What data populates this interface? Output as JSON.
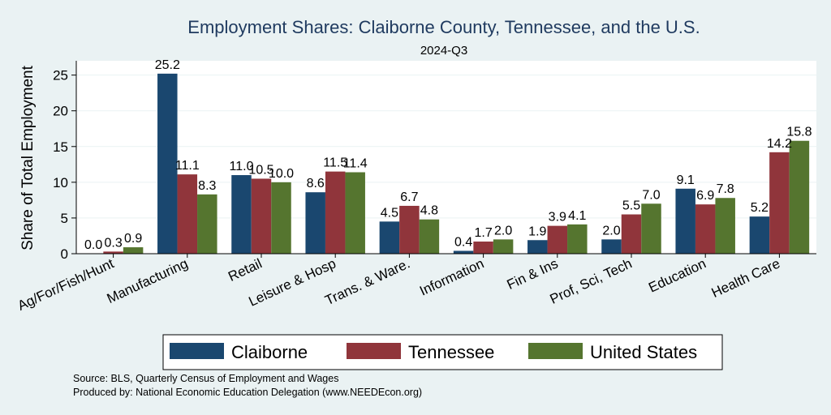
{
  "chart_data": {
    "type": "bar",
    "title": "Employment Shares: Claiborne County, Tennessee, and the U.S.",
    "subtitle": "2024-Q3",
    "ylabel": "Share of Total Employment",
    "xlabel": "",
    "ylim": [
      0,
      27
    ],
    "yticks": [
      0,
      5,
      10,
      15,
      20,
      25
    ],
    "grid": true,
    "legend_position": "bottom",
    "categories": [
      "Ag/For/Fish/Hunt",
      "Manufacturing",
      "Retail",
      "Leisure & Hosp",
      "Trans. & Ware.",
      "Information",
      "Fin & Ins",
      "Prof, Sci, Tech",
      "Education",
      "Health Care"
    ],
    "series": [
      {
        "name": "Claiborne",
        "color": "#1a476f",
        "values": [
          0.0,
          25.2,
          11.0,
          8.6,
          4.5,
          0.4,
          1.9,
          2.0,
          9.1,
          5.2
        ],
        "labels": [
          "0.0",
          "25.2",
          "11.0",
          "8.6",
          "4.5",
          "0.4",
          "1.9",
          "2.0",
          "9.1",
          "5.2"
        ]
      },
      {
        "name": "Tennessee",
        "color": "#90353b",
        "values": [
          0.3,
          11.1,
          10.5,
          11.5,
          6.7,
          1.7,
          3.9,
          5.5,
          6.9,
          14.2
        ],
        "labels": [
          "0.3",
          "11.1",
          "10.5",
          "11.5",
          "6.7",
          "1.7",
          "3.9",
          "5.5",
          "6.9",
          "14.2"
        ]
      },
      {
        "name": "United States",
        "color": "#55752f",
        "values": [
          0.9,
          8.3,
          10.0,
          11.4,
          4.8,
          2.0,
          4.1,
          7.0,
          7.8,
          15.8
        ],
        "labels": [
          "0.9",
          "8.3",
          "10.0",
          "11.4",
          "4.8",
          "2.0",
          "4.1",
          "7.0",
          "7.8",
          "15.8"
        ]
      }
    ]
  },
  "footer": {
    "source": "Source: BLS, Quarterly Census of Employment and Wages",
    "produced_by": "Produced by: National Economic Education Delegation (www.NEEDEcon.org)"
  }
}
